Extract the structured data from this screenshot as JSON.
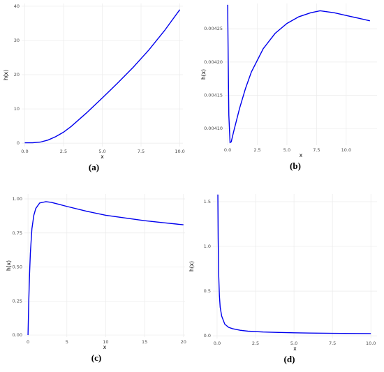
{
  "chart_data": [
    {
      "type": "line",
      "caption": "(a)",
      "xlabel": "x",
      "ylabel": "h(x)",
      "color": "#0000ee",
      "grid": true,
      "x": [
        0,
        0.5,
        1,
        1.5,
        2,
        2.5,
        3,
        4,
        5,
        6,
        7,
        8,
        9,
        10
      ],
      "values": [
        0.1,
        0.1,
        0.3,
        0.9,
        1.9,
        3.2,
        4.9,
        8.9,
        13.2,
        17.6,
        22.2,
        27.2,
        32.8,
        39.0
      ],
      "xlim": [
        -0.2,
        10.2
      ],
      "ylim": [
        -1,
        40.8
      ],
      "xticks": [
        {
          "value": 0,
          "label": "0.0"
        },
        2.5,
        {
          "value": 5,
          "label": "5.0"
        },
        7.5,
        {
          "value": 10,
          "label": "10.0"
        }
      ],
      "yticks": [
        0,
        10,
        20,
        30,
        40
      ]
    },
    {
      "type": "line",
      "caption": "(b)",
      "xlabel": "x",
      "ylabel": "h(x)",
      "color": "#0000ee",
      "grid": true,
      "x": [
        0,
        0.05,
        0.1,
        0.2,
        0.3,
        0.5,
        1,
        1.5,
        2,
        3,
        4,
        5,
        6,
        7,
        7.8,
        9,
        10,
        11,
        12
      ],
      "values": [
        0.004286,
        0.0042,
        0.00412,
        0.004079,
        0.00408,
        0.004095,
        0.00413,
        0.00416,
        0.004185,
        0.00422,
        0.004243,
        0.004258,
        0.004268,
        0.004274,
        0.004277,
        0.004274,
        0.00427,
        0.004266,
        0.004262
      ],
      "xlim": [
        -0.24,
        12.6
      ],
      "ylim": [
        0.004075,
        0.004288
      ],
      "xticks": [
        {
          "value": 0,
          "label": "0.0"
        },
        2.5,
        {
          "value": 5,
          "label": "5.0"
        },
        7.5,
        {
          "value": 10,
          "label": "10.0"
        }
      ],
      "yticks": [
        {
          "value": 0.0041,
          "label": "0.00410"
        },
        0.00415,
        {
          "value": 0.0042,
          "label": "0.00420"
        },
        0.00425
      ]
    },
    {
      "type": "line",
      "caption": "(c)",
      "xlabel": "x",
      "ylabel": "h(x)",
      "color": "#0000ee",
      "grid": true,
      "x": [
        0,
        0.1,
        0.2,
        0.3,
        0.5,
        0.75,
        1,
        1.5,
        2.3,
        3,
        4,
        5,
        7.5,
        10,
        12.5,
        15,
        17.5,
        20
      ],
      "values": [
        0,
        0.25,
        0.45,
        0.6,
        0.78,
        0.88,
        0.93,
        0.97,
        0.98,
        0.975,
        0.96,
        0.945,
        0.91,
        0.88,
        0.86,
        0.84,
        0.825,
        0.81
      ],
      "xlim": [
        -0.46,
        20.2
      ],
      "ylim": [
        -0.015,
        1.036
      ],
      "xticks": [
        0,
        5,
        10,
        15,
        20
      ],
      "yticks": [
        {
          "value": 0,
          "label": "0.00"
        },
        0.25,
        {
          "value": 0.5,
          "label": "0.50"
        },
        0.75,
        {
          "value": 1,
          "label": "1.00"
        }
      ]
    },
    {
      "type": "line",
      "caption": "(d)",
      "xlabel": "x",
      "ylabel": "h(x)",
      "color": "#0000ee",
      "grid": true,
      "x": [
        0.05,
        0.07,
        0.1,
        0.15,
        0.2,
        0.3,
        0.5,
        0.75,
        1,
        1.5,
        2,
        3,
        4,
        5,
        6,
        7.5,
        10
      ],
      "values": [
        1.58,
        1.1,
        0.7,
        0.45,
        0.32,
        0.22,
        0.13,
        0.095,
        0.08,
        0.062,
        0.052,
        0.043,
        0.038,
        0.034,
        0.031,
        0.028,
        0.025
      ],
      "xlim": [
        -0.27,
        10.4
      ],
      "ylim": [
        -0.03,
        1.586
      ],
      "xticks": [
        {
          "value": 0,
          "label": "0.0"
        },
        2.5,
        {
          "value": 5,
          "label": "5.0"
        },
        7.5,
        {
          "value": 10,
          "label": "10.0"
        }
      ],
      "yticks": [
        {
          "value": 0,
          "label": "0.0"
        },
        0.5,
        {
          "value": 1,
          "label": "1.0"
        },
        1.5
      ]
    }
  ]
}
